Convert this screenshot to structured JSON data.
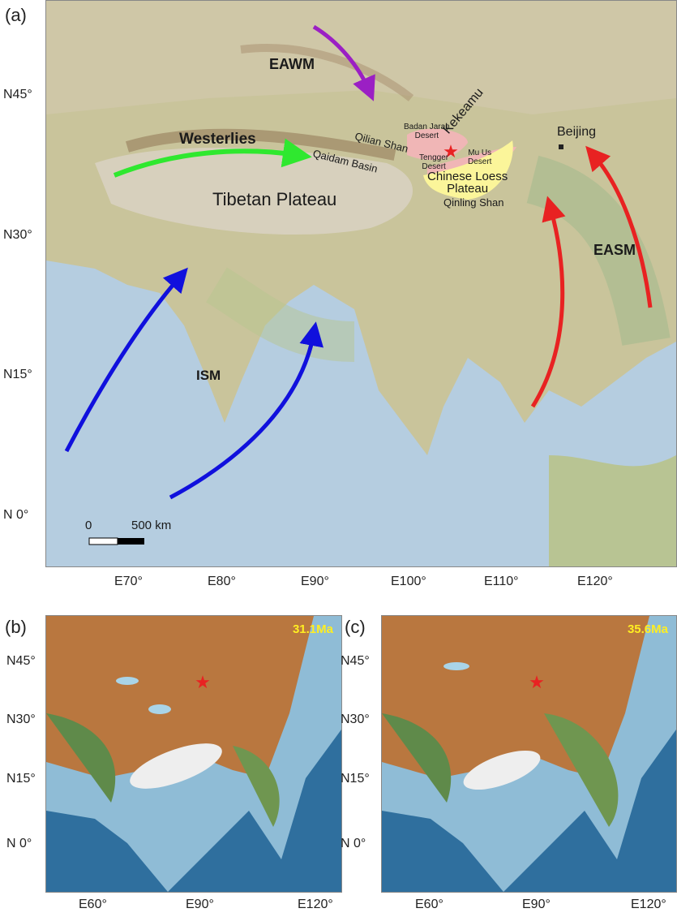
{
  "panels": {
    "a": {
      "label": "(a)",
      "lat_ticks": [
        "N45°",
        "N30°",
        "N15°",
        "N 0°"
      ],
      "lon_ticks": [
        "E70°",
        "E80°",
        "E90°",
        "E100°",
        "E110°",
        "E120°"
      ],
      "places": {
        "eawm": "EAWM",
        "westerlies": "Westerlies",
        "qilian": "Qilian Shan",
        "qaidam": "Qaidam Basin",
        "tibet": "Tibetan Plateau",
        "badan": "Badan Jaran\nDesert",
        "kekeamu": "Kekeamu",
        "tengger": "Tengger\nDesert",
        "muus": "Mu Us\nDesert",
        "loess": "Chinese Loess\nPlateau",
        "qinling": "Qinling Shan",
        "beijing": "Beijing",
        "easm": "EASM",
        "ism": "ISM"
      },
      "scale_bar": {
        "zero": "0",
        "max": "500 km"
      },
      "colors": {
        "eawm": "#9b1fc4",
        "westerlies": "#2fe82f",
        "ism": "#1010dd",
        "easm": "#e82222",
        "star": "#e82222",
        "loess": "#fbf59a",
        "desert": "#f0b6b6"
      }
    },
    "b": {
      "label": "(b)",
      "age": "31.1Ma",
      "lat_ticks": [
        "N45°",
        "N30°",
        "N15°",
        "N 0°"
      ],
      "lon_ticks": [
        "E60°",
        "E90°",
        "E120°"
      ]
    },
    "c": {
      "label": "(c)",
      "age": "35.6Ma",
      "lat_ticks": [
        "N45°",
        "N30°",
        "N15°",
        "N 0°"
      ],
      "lon_ticks": [
        "E60°",
        "E90°",
        "E120°"
      ]
    }
  }
}
